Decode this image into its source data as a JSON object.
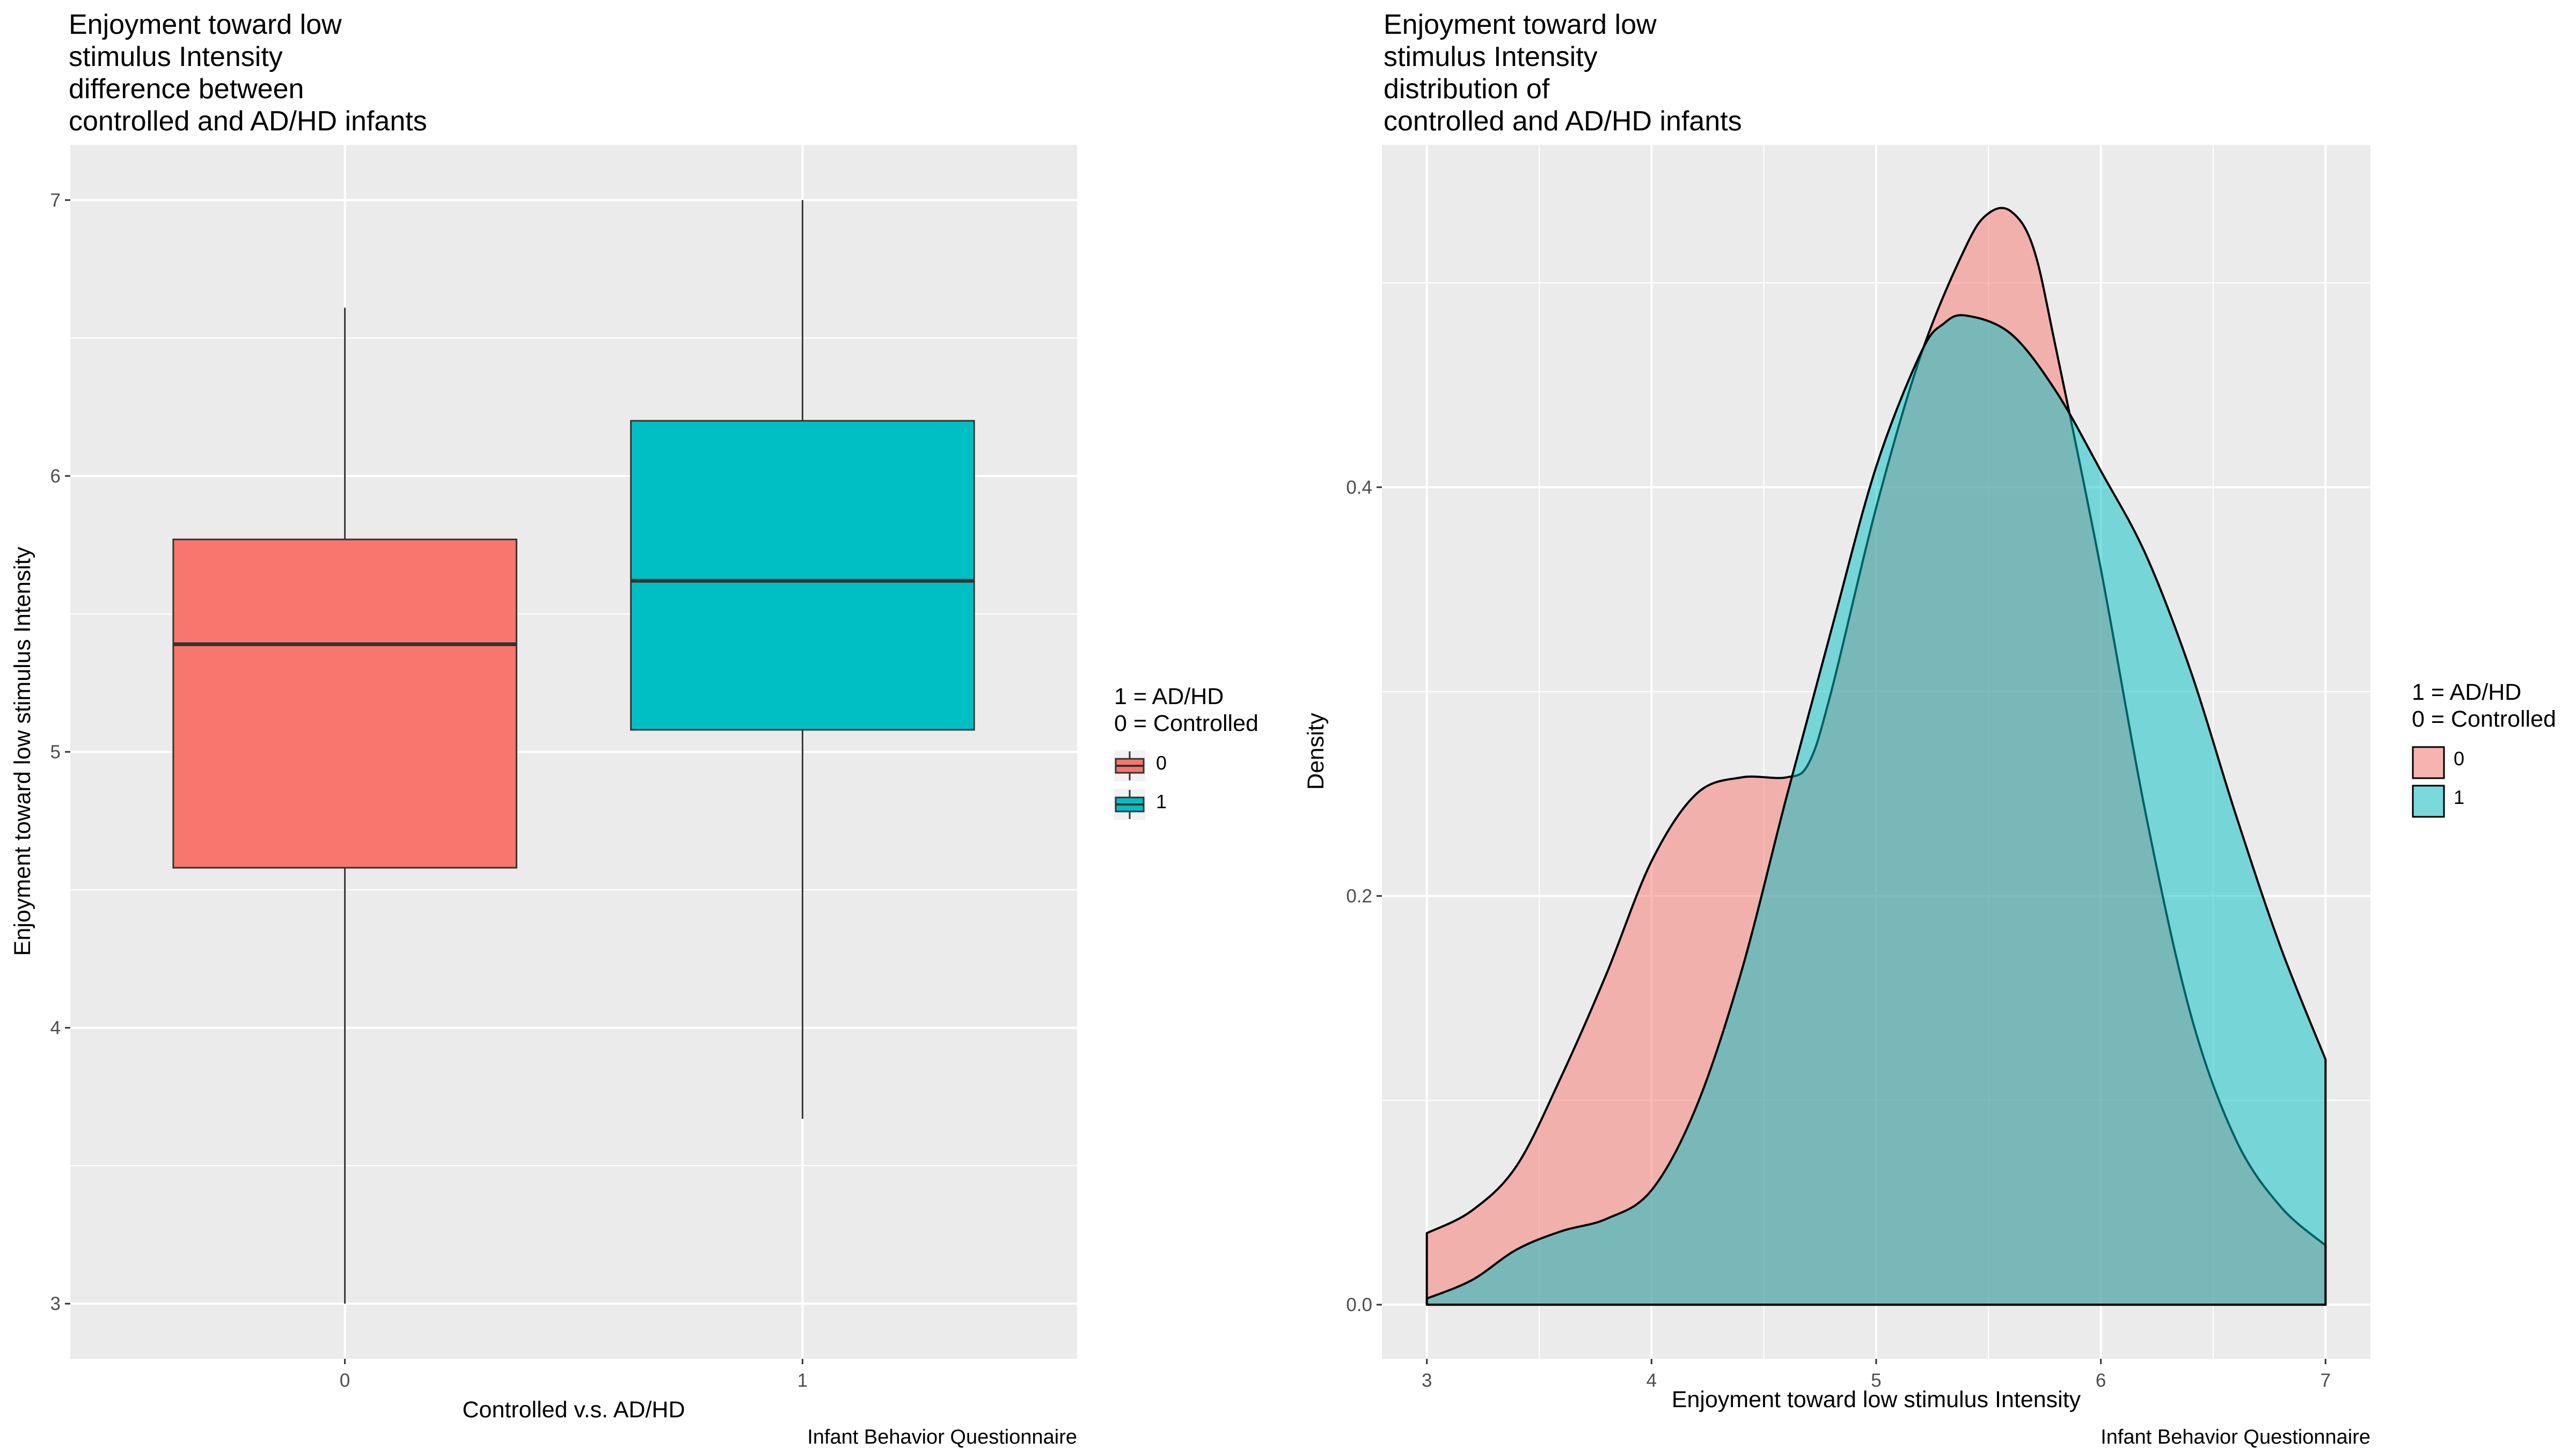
{
  "chart_data": [
    {
      "type": "boxplot",
      "title": "Enjoyment toward low\nstimulus Intensity\ndifference between\ncontrolled and AD/HD infants",
      "xlabel": "Controlled v.s. AD/HD",
      "ylabel": "Enjoyment toward low stimulus Intensity",
      "caption": "Infant Behavior Questionnaire",
      "categories": [
        "0",
        "1"
      ],
      "boxes": [
        {
          "group": "0",
          "min": 3.0,
          "q1": 4.58,
          "median": 5.39,
          "q3": 5.77,
          "max": 6.61,
          "color": "#F8766D"
        },
        {
          "group": "1",
          "min": 3.67,
          "q1": 5.08,
          "median": 5.62,
          "q3": 6.2,
          "max": 7.0,
          "color": "#00BFC4"
        }
      ],
      "ylim": [
        2.8,
        7.2
      ],
      "yticks": [
        3,
        4,
        5,
        6,
        7
      ],
      "grid": true,
      "legend": {
        "title": "1 = AD/HD\n0 = Controlled",
        "entries": [
          "0",
          "1"
        ],
        "placement": "right"
      }
    },
    {
      "type": "density",
      "title": "Enjoyment toward low\nstimulus Intensity\ndistribution of\ncontrolled and AD/HD infants",
      "xlabel": "Enjoyment toward low stimulus Intensity",
      "ylabel": "Density",
      "caption": "Infant Behavior Questionnaire",
      "xlim": [
        2.8,
        7.2
      ],
      "ylim": [
        -0.0265,
        0.5675
      ],
      "xticks": [
        3,
        4,
        5,
        6,
        7
      ],
      "yticks": [
        0.0,
        0.2,
        0.4
      ],
      "ytick_labels": [
        "0.0",
        "0.2",
        "0.4"
      ],
      "grid": true,
      "series": [
        {
          "name": "0",
          "color": "#F8766D",
          "opacity": 0.5,
          "x": [
            3.0,
            3.2,
            3.4,
            3.6,
            3.8,
            4.0,
            4.2,
            4.4,
            4.6,
            4.7,
            4.8,
            5.0,
            5.2,
            5.4,
            5.5,
            5.6,
            5.7,
            5.8,
            6.0,
            6.2,
            6.4,
            6.6,
            6.8,
            7.0
          ],
          "y": [
            0.035,
            0.046,
            0.068,
            0.112,
            0.162,
            0.217,
            0.25,
            0.258,
            0.258,
            0.265,
            0.3,
            0.39,
            0.465,
            0.518,
            0.534,
            0.535,
            0.517,
            0.468,
            0.36,
            0.24,
            0.142,
            0.081,
            0.048,
            0.029
          ]
        },
        {
          "name": "1",
          "color": "#00BFC4",
          "opacity": 0.5,
          "x": [
            3.0,
            3.2,
            3.4,
            3.6,
            3.8,
            4.0,
            4.2,
            4.4,
            4.6,
            4.8,
            5.0,
            5.2,
            5.3,
            5.4,
            5.6,
            5.8,
            6.0,
            6.2,
            6.4,
            6.6,
            6.8,
            7.0
          ],
          "y": [
            0.003,
            0.012,
            0.027,
            0.036,
            0.042,
            0.056,
            0.097,
            0.163,
            0.248,
            0.33,
            0.41,
            0.466,
            0.48,
            0.484,
            0.475,
            0.447,
            0.408,
            0.367,
            0.31,
            0.24,
            0.175,
            0.12
          ]
        }
      ],
      "legend": {
        "title": "1 = AD/HD\n0 = Controlled",
        "entries": [
          "0",
          "1"
        ],
        "placement": "right"
      }
    }
  ]
}
